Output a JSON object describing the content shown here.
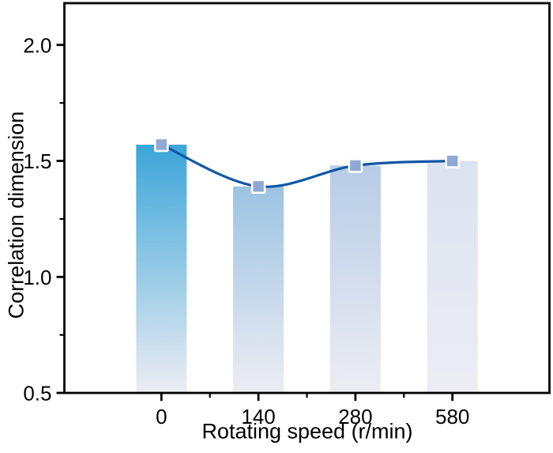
{
  "figure": {
    "background": "#ffffff"
  },
  "chart_data": {
    "type": "bar",
    "overlay": "smooth-line-with-square-markers",
    "title": "",
    "xlabel": "Rotating speed (r/min)",
    "ylabel": "Correlation dimension",
    "categories": [
      "0",
      "140",
      "280",
      "580"
    ],
    "values": [
      1.57,
      1.39,
      1.48,
      1.5
    ],
    "ylim": [
      0.5,
      2.18
    ],
    "yticks": [
      "0.5",
      "1.0",
      "1.5",
      "2.0"
    ],
    "yticks_minor": [
      0.75,
      1.25,
      1.75
    ],
    "grid": false,
    "legend": "none",
    "colors": {
      "bar_tops": [
        "#3aa5d8",
        "#9cc3e2",
        "#b7cce6",
        "#dbe3f1"
      ],
      "bar_bottom_fade": "#ededf3",
      "line": "#1256a6",
      "marker_fill": "#8fa9d2",
      "marker_stroke": "#fcfdfe",
      "axis": "#000000",
      "text": "#000000"
    }
  }
}
